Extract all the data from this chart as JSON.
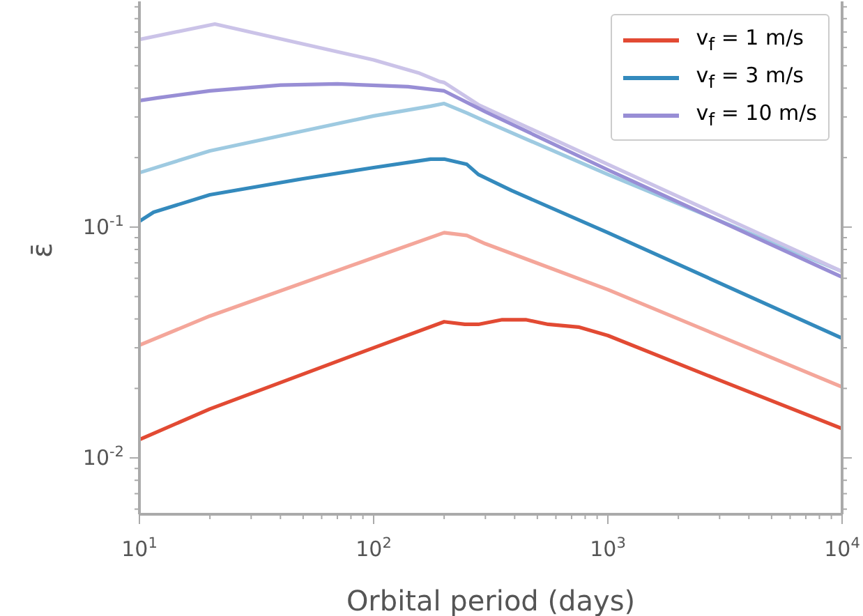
{
  "chart_data": {
    "type": "line",
    "xlabel": "Orbital period (days)",
    "ylabel": "ε̄",
    "log": "xy",
    "legend": "top right",
    "line_style": "solid",
    "xlim": [
      10,
      10000
    ],
    "ylim": [
      0.0057,
      0.95
    ],
    "xticks": [
      {
        "value": 10,
        "label": "10$^{1}$"
      },
      {
        "value": 20,
        "label": null
      },
      {
        "value": 30,
        "label": null
      },
      {
        "value": 40,
        "label": null
      },
      {
        "value": 50,
        "label": null
      },
      {
        "value": 60,
        "label": null
      },
      {
        "value": 70,
        "label": null
      },
      {
        "value": 80,
        "label": null
      },
      {
        "value": 90,
        "label": null
      },
      {
        "value": 100,
        "label": "10$^{2}$"
      },
      {
        "value": 200,
        "label": null
      },
      {
        "value": 300,
        "label": null
      },
      {
        "value": 400,
        "label": null
      },
      {
        "value": 500,
        "label": null
      },
      {
        "value": 600,
        "label": null
      },
      {
        "value": 700,
        "label": null
      },
      {
        "value": 800,
        "label": null
      },
      {
        "value": 900,
        "label": null
      },
      {
        "value": 1000,
        "label": "10$^{3}$"
      },
      {
        "value": 2000,
        "label": null
      },
      {
        "value": 3000,
        "label": null
      },
      {
        "value": 4000,
        "label": null
      },
      {
        "value": 5000,
        "label": null
      },
      {
        "value": 6000,
        "label": null
      },
      {
        "value": 7000,
        "label": null
      },
      {
        "value": 8000,
        "label": null
      },
      {
        "value": 9000,
        "label": null
      },
      {
        "value": 10000,
        "label": "10$^{4}$"
      }
    ],
    "yticks": [
      {
        "value": 0.006,
        "label": null
      },
      {
        "value": 0.007,
        "label": null
      },
      {
        "value": 0.008,
        "label": null
      },
      {
        "value": 0.009,
        "label": null
      },
      {
        "value": 0.01,
        "label": "10$^{-2}$"
      },
      {
        "value": 0.02,
        "label": null
      },
      {
        "value": 0.03,
        "label": null
      },
      {
        "value": 0.04,
        "label": null
      },
      {
        "value": 0.05,
        "label": null
      },
      {
        "value": 0.06,
        "label": null
      },
      {
        "value": 0.07,
        "label": null
      },
      {
        "value": 0.08,
        "label": null
      },
      {
        "value": 0.09,
        "label": null
      },
      {
        "value": 0.1,
        "label": "10$^{-1}$"
      },
      {
        "value": 0.2,
        "label": null
      },
      {
        "value": 0.3,
        "label": null
      },
      {
        "value": 0.4,
        "label": null
      },
      {
        "value": 0.5,
        "label": null
      },
      {
        "value": 0.6,
        "label": null
      },
      {
        "value": 0.7,
        "label": null
      },
      {
        "value": 0.8,
        "label": null
      },
      {
        "value": 0.9,
        "label": null
      }
    ],
    "series": [
      {
        "color": "#f4a69a",
        "x": [
          10,
          20,
          100,
          200,
          250,
          300,
          1000,
          10000
        ],
        "values": [
          0.0308,
          0.0412,
          0.0737,
          0.0946,
          0.092,
          0.0847,
          0.0536,
          0.0203
        ]
      },
      {
        "name": "v$_{f}$ = 1 m/s",
        "color": "#e24a33",
        "x": [
          10,
          20,
          100,
          200,
          245,
          280,
          354,
          446,
          556,
          749,
          1000,
          3000,
          10000
        ],
        "values": [
          0.012,
          0.0163,
          0.03,
          0.0389,
          0.0379,
          0.0379,
          0.0397,
          0.0397,
          0.0379,
          0.0369,
          0.0339,
          0.0217,
          0.0134
        ]
      },
      {
        "color": "#9ecae1",
        "x": [
          10,
          20,
          100,
          175,
          200,
          250,
          300,
          1000,
          10000
        ],
        "values": [
          0.172,
          0.214,
          0.303,
          0.334,
          0.343,
          0.312,
          0.287,
          0.169,
          0.0642
        ]
      },
      {
        "name": "v$_{f}$ = 3 m/s",
        "color": "#348abd",
        "x": [
          10,
          11.5,
          20,
          50,
          100,
          175,
          200,
          250,
          280,
          388,
          1000,
          10000
        ],
        "values": [
          0.106,
          0.116,
          0.138,
          0.162,
          0.181,
          0.197,
          0.197,
          0.187,
          0.169,
          0.144,
          0.0946,
          0.033
        ]
      },
      {
        "color": "#cbc3e8",
        "x": [
          10,
          21,
          100,
          155,
          190,
          200,
          280,
          1000,
          10000
        ],
        "values": [
          0.65,
          0.758,
          0.53,
          0.466,
          0.428,
          0.423,
          0.339,
          0.187,
          0.0642
        ]
      },
      {
        "name": "v$_{f}$ = 10 m/s",
        "color": "#988ed5",
        "x": [
          10,
          12,
          20,
          40,
          70,
          140,
          180,
          200,
          300,
          1000,
          10000
        ],
        "values": [
          0.353,
          0.363,
          0.389,
          0.412,
          0.417,
          0.406,
          0.394,
          0.389,
          0.316,
          0.177,
          0.0607
        ]
      }
    ]
  }
}
